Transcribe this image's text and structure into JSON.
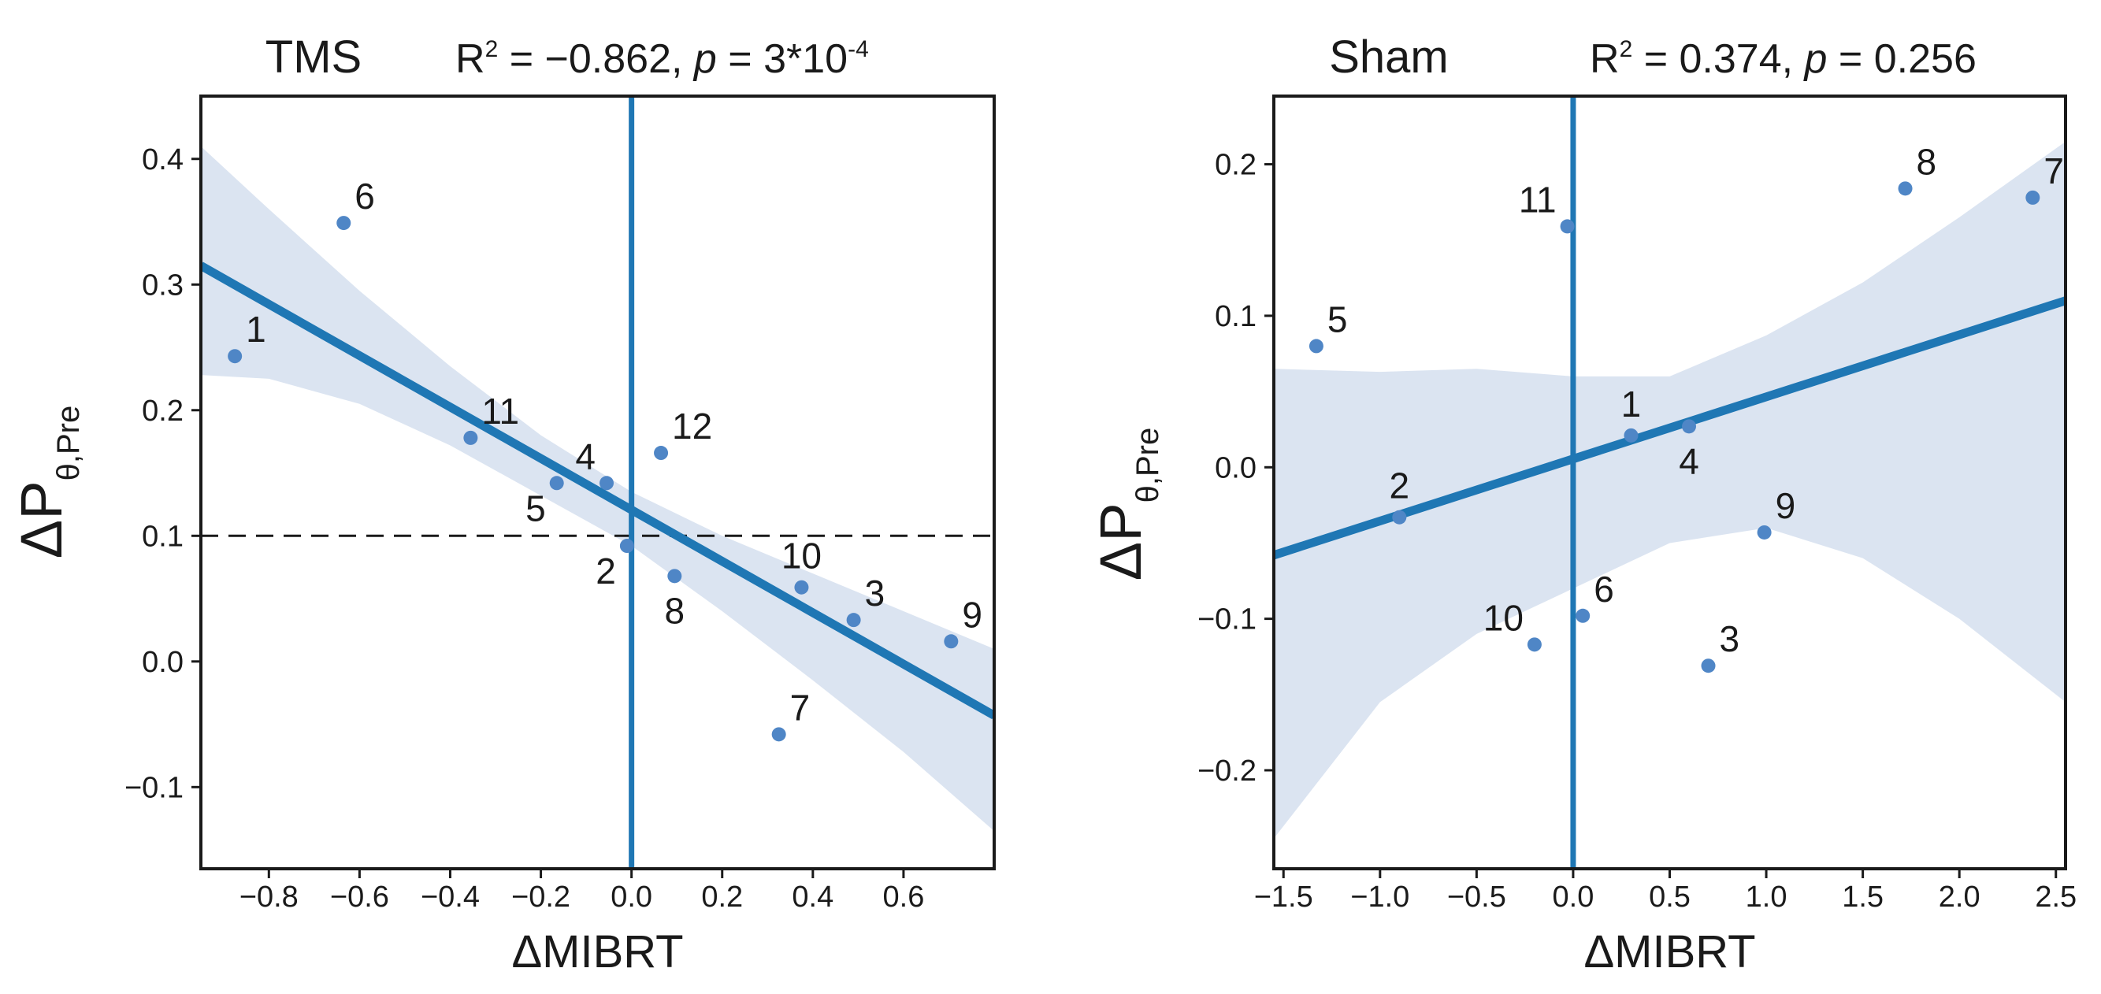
{
  "colors": {
    "line": "#1f77b4",
    "point": "#4f86c6",
    "band": "#dbe4f1",
    "axis": "#1a1a1a",
    "threshold": "#1a1a1a"
  },
  "chart_data": [
    {
      "type": "scatter",
      "id": "tms",
      "title": "TMS",
      "stat": {
        "r_label": "R",
        "r_sup": "2",
        "r_value": " = −0.862, ",
        "p_label": "p",
        "p_eq": " = 3*10",
        "p_sup": "-4"
      },
      "xlabel": "ΔMIBRT",
      "ylabel": {
        "main": "ΔP",
        "sub": "θ,Pre"
      },
      "xlim": [
        -0.95,
        0.8
      ],
      "ylim": [
        -0.165,
        0.45
      ],
      "xticks": [
        -0.8,
        -0.6,
        -0.4,
        -0.2,
        0.0,
        0.2,
        0.4,
        0.6
      ],
      "xtick_labels": [
        "−0.8",
        "−0.6",
        "−0.4",
        "−0.2",
        "0.0",
        "0.2",
        "0.4",
        "0.6"
      ],
      "yticks": [
        -0.1,
        0.0,
        0.1,
        0.2,
        0.3,
        0.4
      ],
      "ytick_labels": [
        "−0.1",
        "0.0",
        "0.1",
        "0.2",
        "0.3",
        "0.4"
      ],
      "vline_x": 0.0,
      "hline_y": 0.1,
      "regression": {
        "x0": -0.95,
        "y0": 0.315,
        "x1": 0.8,
        "y1": -0.043
      },
      "ci_band": {
        "x": [
          -0.95,
          -0.8,
          -0.6,
          -0.4,
          -0.2,
          0.0,
          0.2,
          0.4,
          0.6,
          0.8
        ],
        "upper": [
          0.41,
          0.36,
          0.295,
          0.235,
          0.18,
          0.135,
          0.1,
          0.07,
          0.04,
          0.01
        ],
        "lower": [
          0.228,
          0.225,
          0.205,
          0.172,
          0.132,
          0.092,
          0.04,
          -0.015,
          -0.072,
          -0.135
        ]
      },
      "points": [
        {
          "label": "1",
          "x": -0.875,
          "y": 0.243,
          "pos": "ur"
        },
        {
          "label": "6",
          "x": -0.635,
          "y": 0.349,
          "pos": "ur"
        },
        {
          "label": "11",
          "x": -0.355,
          "y": 0.178,
          "pos": "ur"
        },
        {
          "label": "5",
          "x": -0.165,
          "y": 0.142,
          "pos": "ll"
        },
        {
          "label": "4",
          "x": -0.055,
          "y": 0.142,
          "pos": "ul"
        },
        {
          "label": "12",
          "x": 0.065,
          "y": 0.166,
          "pos": "ur"
        },
        {
          "label": "2",
          "x": -0.01,
          "y": 0.092,
          "pos": "ll"
        },
        {
          "label": "8",
          "x": 0.095,
          "y": 0.068,
          "pos": "lc"
        },
        {
          "label": "10",
          "x": 0.375,
          "y": 0.059,
          "pos": "uc"
        },
        {
          "label": "3",
          "x": 0.49,
          "y": 0.033,
          "pos": "ur"
        },
        {
          "label": "9",
          "x": 0.705,
          "y": 0.016,
          "pos": "ur"
        },
        {
          "label": "7",
          "x": 0.325,
          "y": -0.058,
          "pos": "ur"
        }
      ]
    },
    {
      "type": "scatter",
      "id": "sham",
      "title": "Sham",
      "stat": {
        "r_label": "R",
        "r_sup": "2",
        "r_value": " = 0.374, ",
        "p_label": "p",
        "p_eq": " = 0.256",
        "p_sup": ""
      },
      "xlabel": "ΔMIBRT",
      "ylabel": {
        "main": "ΔP",
        "sub": "θ,Pre"
      },
      "xlim": [
        -1.55,
        2.55
      ],
      "ylim": [
        -0.265,
        0.245
      ],
      "xticks": [
        -1.5,
        -1.0,
        -0.5,
        0.0,
        0.5,
        1.0,
        1.5,
        2.0,
        2.5
      ],
      "xtick_labels": [
        "−1.5",
        "−1.0",
        "−0.5",
        "0.0",
        "0.5",
        "1.0",
        "1.5",
        "2.0",
        "2.5"
      ],
      "yticks": [
        -0.2,
        -0.1,
        0.0,
        0.1,
        0.2
      ],
      "ytick_labels": [
        "−0.2",
        "−0.1",
        "0.0",
        "0.1",
        "0.2"
      ],
      "vline_x": 0.0,
      "hline_y": null,
      "regression": {
        "x0": -1.55,
        "y0": -0.058,
        "x1": 2.55,
        "y1": 0.11
      },
      "ci_band": {
        "x": [
          -1.55,
          -1.0,
          -0.5,
          0.0,
          0.5,
          1.0,
          1.5,
          2.0,
          2.55
        ],
        "upper": [
          0.065,
          0.063,
          0.065,
          0.06,
          0.06,
          0.087,
          0.122,
          0.165,
          0.215
        ],
        "lower": [
          -0.245,
          -0.155,
          -0.11,
          -0.08,
          -0.05,
          -0.04,
          -0.06,
          -0.1,
          -0.155
        ]
      },
      "points": [
        {
          "label": "5",
          "x": -1.33,
          "y": 0.08,
          "pos": "ur"
        },
        {
          "label": "2",
          "x": -0.9,
          "y": -0.033,
          "pos": "uc"
        },
        {
          "label": "11",
          "x": -0.03,
          "y": 0.159,
          "pos": "ul"
        },
        {
          "label": "1",
          "x": 0.3,
          "y": 0.021,
          "pos": "uc"
        },
        {
          "label": "4",
          "x": 0.6,
          "y": 0.027,
          "pos": "lc"
        },
        {
          "label": "8",
          "x": 1.72,
          "y": 0.184,
          "pos": "ur"
        },
        {
          "label": "7",
          "x": 2.38,
          "y": 0.178,
          "pos": "ur"
        },
        {
          "label": "9",
          "x": 0.99,
          "y": -0.043,
          "pos": "ur"
        },
        {
          "label": "6",
          "x": 0.05,
          "y": -0.098,
          "pos": "ur"
        },
        {
          "label": "10",
          "x": -0.2,
          "y": -0.117,
          "pos": "ul"
        },
        {
          "label": "3",
          "x": 0.7,
          "y": -0.131,
          "pos": "ur"
        }
      ]
    }
  ]
}
